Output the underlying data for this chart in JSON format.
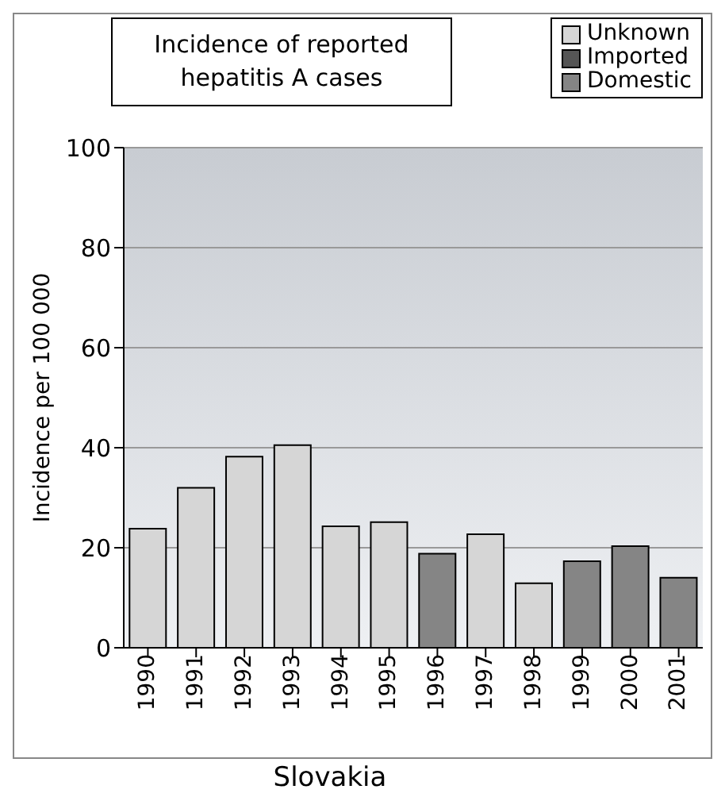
{
  "chart_data": {
    "type": "bar",
    "title": "Incidence of reported hepatitis A cases",
    "ylabel": "Incidence per 100 000",
    "annotations": [
      "Slovakia"
    ],
    "categories": [
      "1990",
      "1991",
      "1992",
      "1993",
      "1994",
      "1995",
      "1996",
      "1997",
      "1998",
      "1999",
      "2000",
      "2001"
    ],
    "stacked": true,
    "series": [
      {
        "name": "Unknown",
        "color": "#d6d6d6",
        "values": [
          23.8,
          32.0,
          38.2,
          40.5,
          24.3,
          25.1,
          null,
          22.7,
          12.9,
          null,
          null,
          null
        ]
      },
      {
        "name": "Imported",
        "color": "#555555",
        "values": [
          null,
          null,
          null,
          null,
          null,
          null,
          null,
          null,
          null,
          null,
          null,
          null
        ]
      },
      {
        "name": "Domestic",
        "color": "#858585",
        "values": [
          null,
          null,
          null,
          null,
          null,
          null,
          18.8,
          null,
          null,
          17.3,
          20.3,
          14.0
        ]
      }
    ],
    "ylim": [
      0,
      100
    ],
    "yticks": [
      0,
      20,
      40,
      60,
      80,
      100
    ],
    "grid": "y",
    "legend": "top right"
  }
}
